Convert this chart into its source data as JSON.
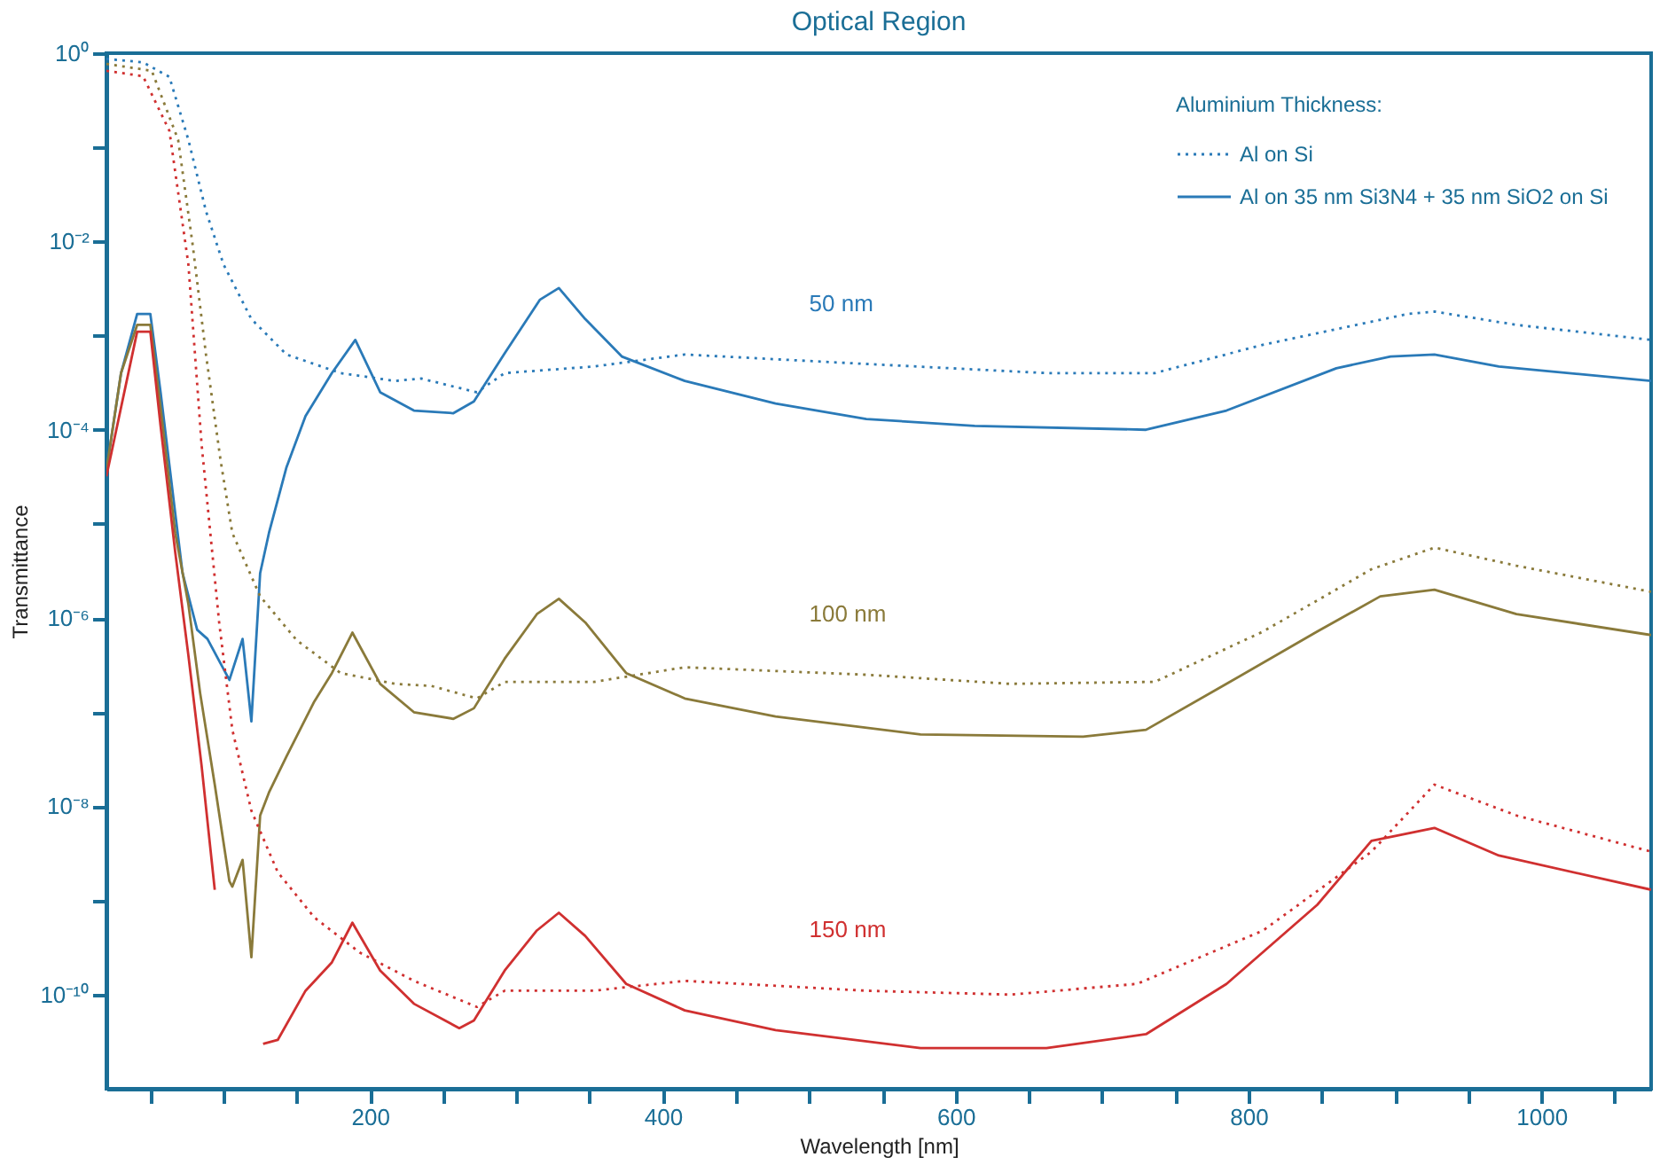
{
  "chart_data": {
    "type": "line",
    "title": "Optical Region",
    "xlabel": "Wavelength [nm]",
    "ylabel": "Transmittance",
    "legend_title": "Aluminium Thickness:",
    "legend": "top right",
    "grid": false,
    "log": "y",
    "marker": "none",
    "xlim": [
      20,
      1075
    ],
    "ylim": [
      1e-11,
      1
    ],
    "xticks": [
      {
        "value": 50,
        "label": null
      },
      {
        "value": 100,
        "label": null
      },
      {
        "value": 150,
        "label": null
      },
      200,
      {
        "value": 250,
        "label": null
      },
      {
        "value": 300,
        "label": null
      },
      {
        "value": 350,
        "label": null
      },
      400,
      {
        "value": 450,
        "label": null
      },
      {
        "value": 500,
        "label": null
      },
      {
        "value": 550,
        "label": null
      },
      600,
      {
        "value": 650,
        "label": null
      },
      {
        "value": 700,
        "label": null
      },
      {
        "value": 750,
        "label": null
      },
      800,
      {
        "value": 850,
        "label": null
      },
      {
        "value": 900,
        "label": null
      },
      {
        "value": 950,
        "label": null
      },
      1000,
      {
        "value": 1050,
        "label": null
      }
    ],
    "yticks": [
      {
        "value": 1,
        "label": "10⁰"
      },
      {
        "value": 0.1,
        "label": null
      },
      {
        "value": 0.01,
        "label": "10⁻²"
      },
      {
        "value": 0.001,
        "label": null
      },
      {
        "value": 0.0001,
        "label": "10⁻⁴"
      },
      {
        "value": 1e-05,
        "label": null
      },
      {
        "value": 1e-06,
        "label": "10⁻⁶"
      },
      {
        "value": 1e-07,
        "label": null
      },
      {
        "value": 1e-08,
        "label": "10⁻⁸"
      },
      {
        "value": 1e-09,
        "label": null
      },
      {
        "value": 1e-10,
        "label": "10⁻¹⁰"
      }
    ],
    "annotations": [
      "50 nm",
      "100 nm",
      "150 nm"
    ],
    "series": [
      {
        "name": "Al on Si",
        "color": "#2a7ab8",
        "line_style": "dotted",
        "x": [
          20,
          45,
          63,
          76,
          88,
          100,
          119,
          143,
          180,
          217,
          235,
          273,
          292,
          353,
          415,
          539,
          662,
          736,
          810,
          909,
          927,
          983,
          1075
        ],
        "values": [
          0.87,
          0.8,
          0.56,
          0.12,
          0.021,
          0.0057,
          0.0015,
          0.00063,
          0.0004,
          0.00033,
          0.00035,
          0.00025,
          0.0004,
          0.00047,
          0.00063,
          0.0005,
          0.0004,
          0.0004,
          0.0008,
          0.0017,
          0.0018,
          0.0013,
          0.0009
        ]
      },
      {
        "name": "Al on 35 nm Si3N4 + 35 nm SiO2 on Si",
        "color": "#2a7ab8",
        "line_style": "solid",
        "x": [
          20,
          30,
          41,
          50,
          57,
          67,
          72,
          82,
          89,
          104,
          113,
          119,
          125,
          131,
          143,
          156,
          174,
          190,
          207,
          230,
          257,
          271,
          292,
          316,
          329,
          347,
          372,
          415,
          477,
          539,
          613,
          730,
          785,
          860,
          897,
          927,
          971,
          1075
        ],
        "values": [
          3.7e-05,
          0.0004,
          0.0017,
          0.0017,
          0.00025,
          1.3e-05,
          3e-06,
          7.5e-07,
          6e-07,
          2.2e-07,
          6e-07,
          8e-08,
          3e-06,
          8e-06,
          4e-05,
          0.00014,
          0.0004,
          0.0009,
          0.00025,
          0.00016,
          0.00015,
          0.0002,
          0.00065,
          0.0024,
          0.0032,
          0.0015,
          0.0006,
          0.00033,
          0.00019,
          0.00013,
          0.00011,
          0.0001,
          0.00016,
          0.00045,
          0.0006,
          0.00063,
          0.00047,
          0.00033
        ]
      },
      {
        "color": "#8a7a3a",
        "line_style": "dotted",
        "x": [
          20,
          51,
          69,
          79,
          88,
          98,
          106,
          125,
          150,
          180,
          217,
          242,
          273,
          292,
          353,
          415,
          539,
          637,
          736,
          810,
          884,
          927,
          983,
          1075
        ],
        "values": [
          0.77,
          0.65,
          0.12,
          0.009,
          0.00063,
          4.7e-05,
          8e-06,
          1.7e-06,
          5.8e-07,
          2.6e-07,
          2e-07,
          1.9e-07,
          1.4e-07,
          2.1e-07,
          2.1e-07,
          3e-07,
          2.5e-07,
          2e-07,
          2.1e-07,
          7.2e-07,
          3.3e-06,
          5.6e-06,
          3.6e-06,
          1.9e-06
        ]
      },
      {
        "color": "#8a7a3a",
        "line_style": "solid",
        "x": [
          20,
          30,
          41,
          50,
          57,
          67,
          76,
          84,
          94,
          104,
          106,
          113,
          119,
          125,
          131,
          143,
          162,
          174,
          188,
          207,
          230,
          257,
          271,
          292,
          314,
          329,
          347,
          375,
          415,
          477,
          576,
          687,
          730,
          785,
          847,
          890,
          927,
          983,
          1075
        ],
        "values": [
          3.7e-05,
          0.0004,
          0.0013,
          0.0013,
          0.00017,
          8e-06,
          1.4e-06,
          1.6e-07,
          1.7e-08,
          1.6e-09,
          1.4e-09,
          2.7e-09,
          2.5e-10,
          8e-09,
          1.4e-08,
          3.4e-08,
          1.3e-07,
          2.6e-07,
          7e-07,
          2e-07,
          1e-07,
          8.5e-08,
          1.1e-07,
          3.7e-07,
          1.1e-06,
          1.6e-06,
          9e-07,
          2.6e-07,
          1.4e-07,
          9e-08,
          5.8e-08,
          5.5e-08,
          6.5e-08,
          2e-07,
          7.2e-07,
          1.7e-06,
          2e-06,
          1.1e-06,
          6.6e-07
        ]
      },
      {
        "color": "#d03030",
        "line_style": "dotted",
        "x": [
          20,
          45,
          63,
          76,
          85,
          97,
          106,
          119,
          137,
          162,
          193,
          230,
          273,
          292,
          353,
          415,
          539,
          637,
          724,
          810,
          884,
          927,
          983,
          1075
        ],
        "values": [
          0.65,
          0.57,
          0.15,
          0.0057,
          7e-05,
          9e-07,
          6.5e-08,
          9e-09,
          2e-09,
          6.6e-10,
          2.8e-10,
          1.4e-10,
          7.4e-11,
          1.1e-10,
          1.1e-10,
          1.4e-10,
          1.1e-10,
          1e-10,
          1.3e-10,
          4.8e-10,
          3.3e-09,
          1.7e-08,
          8e-09,
          3.3e-09
        ]
      },
      {
        "color": "#d03030",
        "line_style": "solid",
        "x": [
          20,
          41,
          50,
          57,
          67,
          76,
          85,
          94,
          104,
          113,
          122,
          127,
          137,
          156,
          174,
          188,
          207,
          230,
          261,
          271,
          292,
          314,
          329,
          347,
          375,
          415,
          477,
          576,
          662,
          730,
          785,
          847,
          884,
          927,
          971,
          1075
        ],
        "values": [
          3.2e-05,
          0.0011,
          0.0011,
          0.00011,
          5e-06,
          4e-07,
          2.7e-08,
          1.3e-09,
          null,
          null,
          null,
          3e-11,
          3.3e-11,
          1.1e-10,
          2.2e-10,
          5.8e-10,
          1.8e-10,
          8e-11,
          4.4e-11,
          5.3e-11,
          1.8e-10,
          4.8e-10,
          7.4e-10,
          4.2e-10,
          1.3e-10,
          6.8e-11,
          4.2e-11,
          2.7e-11,
          2.7e-11,
          3.8e-11,
          1.3e-10,
          9e-10,
          4.3e-09,
          5.9e-09,
          3e-09,
          1.3e-09
        ]
      }
    ]
  }
}
